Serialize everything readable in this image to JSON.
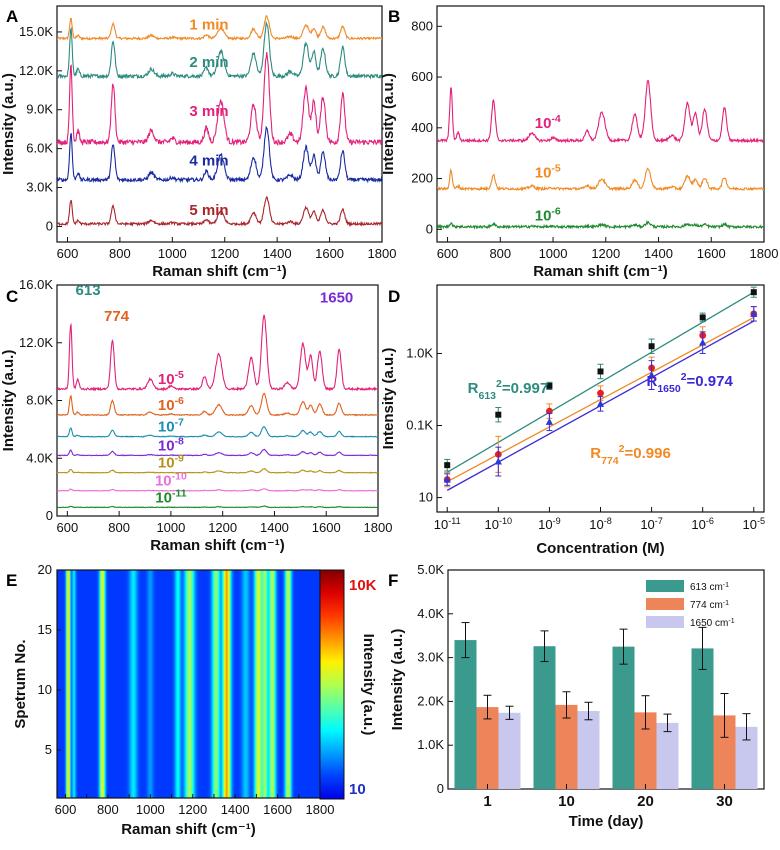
{
  "panels": [
    {
      "id": "A",
      "letter": "A"
    },
    {
      "id": "B",
      "letter": "B"
    },
    {
      "id": "C",
      "letter": "C"
    },
    {
      "id": "D",
      "letter": "D"
    },
    {
      "id": "E",
      "letter": "E"
    },
    {
      "id": "F",
      "letter": "F"
    }
  ],
  "chart_data": [
    {
      "panel": "A",
      "type": "line",
      "xlabel": "Raman shift (cm⁻¹)",
      "ylabel": "Intensity (a.u.)",
      "xlim": [
        560,
        1800
      ],
      "ylim": [
        -1200,
        17000
      ],
      "xticks": [
        600,
        800,
        1000,
        1200,
        1400,
        1600,
        1800
      ],
      "yticks": [
        {
          "v": 0,
          "t": "0"
        },
        {
          "v": 3000,
          "t": "3.0K"
        },
        {
          "v": 6000,
          "t": "6.0K"
        },
        {
          "v": 9000,
          "t": "9.0K"
        },
        {
          "v": 12000,
          "t": "12.0K"
        },
        {
          "v": 15000,
          "t": "15.0K"
        }
      ],
      "series": [
        {
          "name": "1 min",
          "color": "#f08a24",
          "offset": 14500,
          "scale": 0.25
        },
        {
          "name": "2 min",
          "color": "#2e8b80",
          "offset": 11600,
          "scale": 0.6
        },
        {
          "name": "3 min",
          "color": "#e3217a",
          "offset": 6500,
          "scale": 1.0
        },
        {
          "name": "4 min",
          "color": "#1a2aa0",
          "offset": 3600,
          "scale": 0.6
        },
        {
          "name": "5 min",
          "color": "#a8262c",
          "offset": 200,
          "scale": 0.3
        }
      ]
    },
    {
      "panel": "B",
      "type": "line",
      "xlabel": "Raman shift (cm⁻¹)",
      "ylabel": "Intensity (a.u.)",
      "xlim": [
        560,
        1800
      ],
      "ylim": [
        -50,
        880
      ],
      "xticks": [
        600,
        800,
        1000,
        1200,
        1400,
        1600,
        1800
      ],
      "yticks": [
        {
          "v": 0,
          "t": "0"
        },
        {
          "v": 200,
          "t": "200"
        },
        {
          "v": 400,
          "t": "400"
        },
        {
          "v": 600,
          "t": "600"
        },
        {
          "v": 800,
          "t": "800"
        }
      ],
      "series": [
        {
          "name": "10",
          "exp": "-4",
          "color": "#e3217a",
          "offset": 350,
          "scale": 0.035
        },
        {
          "name": "10",
          "exp": "-5",
          "color": "#f08a24",
          "offset": 160,
          "scale": 0.012
        },
        {
          "name": "10",
          "exp": "-6",
          "color": "#1e8a2e",
          "offset": 10,
          "scale": 0.0025
        }
      ]
    },
    {
      "panel": "C",
      "type": "line",
      "xlabel": "Raman shift (cm⁻¹)",
      "ylabel": "Intensity (a.u.)",
      "xlim": [
        560,
        1800
      ],
      "ylim": [
        0,
        16000
      ],
      "xticks": [
        600,
        800,
        1000,
        1200,
        1400,
        1600,
        1800
      ],
      "yticks": [
        {
          "v": 0,
          "t": "0"
        },
        {
          "v": 4000,
          "t": "4.0K"
        },
        {
          "v": 8000,
          "t": "8.0K"
        },
        {
          "v": 12000,
          "t": "12.0K"
        },
        {
          "v": 16000,
          "t": "16.0K"
        }
      ],
      "peak_labels": [
        {
          "text": "613",
          "x": 613,
          "color": "#2e8b80"
        },
        {
          "text": "774",
          "x": 774,
          "color": "#e0621e"
        },
        {
          "text": "1650",
          "x": 1650,
          "color": "#7a2ad6"
        }
      ],
      "series": [
        {
          "name": "10",
          "exp": "-5",
          "color": "#e3217a",
          "offset": 8800,
          "scale": 0.75
        },
        {
          "name": "10",
          "exp": "-6",
          "color": "#e0621e",
          "offset": 7000,
          "scale": 0.22
        },
        {
          "name": "10",
          "exp": "-7",
          "color": "#1a8fb0",
          "offset": 5500,
          "scale": 0.1
        },
        {
          "name": "10",
          "exp": "-8",
          "color": "#7a2ad6",
          "offset": 4200,
          "scale": 0.06
        },
        {
          "name": "10",
          "exp": "-9",
          "color": "#b5931a",
          "offset": 3000,
          "scale": 0.04
        },
        {
          "name": "10",
          "exp": "-10",
          "color": "#ea6fd8",
          "offset": 1750,
          "scale": 0.02
        },
        {
          "name": "10",
          "exp": "-11",
          "color": "#1e8a2e",
          "offset": 600,
          "scale": 0.012
        }
      ]
    },
    {
      "panel": "D",
      "type": "scatter",
      "xlabel": "Concentration (M)",
      "ylabel": "Intensity (a.u.)",
      "xscale": "log",
      "yscale": "log",
      "xlim": [
        -11.2,
        -4.8
      ],
      "ylim": [
        0.8,
        3.95
      ],
      "x": [
        -11,
        -10,
        -9,
        -8,
        -7,
        -6,
        -5
      ],
      "xtick_labels": [
        "10",
        "10",
        "10",
        "10",
        "10",
        "10",
        "10"
      ],
      "xtick_exps": [
        "-11",
        "-10",
        "-9",
        "-8",
        "-7",
        "-6",
        "-5"
      ],
      "yticks": [
        {
          "v": 1,
          "t": "10"
        },
        {
          "v": 2,
          "t": "0.1K"
        },
        {
          "v": 3,
          "t": "1.0K"
        }
      ],
      "series": [
        {
          "name": "R613",
          "label": "R",
          "sub": "613",
          "sup": "2",
          "value": "=0.997",
          "color": "#2e8b80",
          "marker": "square",
          "y": [
            1.45,
            2.15,
            2.55,
            2.75,
            3.1,
            3.5,
            3.85
          ],
          "err": [
            0.08,
            0.1,
            0.05,
            0.1,
            0.1,
            0.06,
            0.07
          ],
          "fit": [
            1.35,
            3.85
          ]
        },
        {
          "name": "R774",
          "label": "R",
          "sub": "774",
          "sup": "2",
          "value": "=0.996",
          "color": "#f08a24",
          "marker": "circle",
          "y": [
            1.25,
            1.6,
            2.2,
            2.45,
            2.8,
            3.25,
            3.55
          ],
          "err": [
            0.1,
            0.25,
            0.1,
            0.1,
            0.15,
            0.12,
            0.1
          ],
          "fit": [
            1.22,
            3.5
          ]
        },
        {
          "name": "R1650",
          "label": "R",
          "sub": "1650",
          "sup": "2",
          "value": "=0.974",
          "color": "#3a2ad6",
          "marker": "triangle",
          "y": [
            1.25,
            1.5,
            2.05,
            2.3,
            2.7,
            3.15,
            3.55
          ],
          "err": [
            0.08,
            0.2,
            0.12,
            0.1,
            0.2,
            0.15,
            0.1
          ],
          "fit": [
            1.1,
            3.45
          ]
        }
      ]
    },
    {
      "panel": "E",
      "type": "heatmap",
      "xlabel": "Raman shift (cm⁻¹)",
      "ylabel": "Spetrum No.",
      "colorbar_label": "Intensity (a.u.)",
      "colorbar_max": "10K",
      "colorbar_min": "10",
      "xlim": [
        560,
        1800
      ],
      "ylim": [
        1,
        20
      ],
      "xticks": [
        600,
        700,
        800,
        900,
        1000,
        1100,
        1200,
        1300,
        1400,
        1500,
        1600,
        1700,
        1800
      ],
      "yticks": [
        5,
        10,
        15,
        20
      ]
    },
    {
      "panel": "F",
      "type": "bar",
      "xlabel": "Time (day)",
      "ylabel": "Intensity (a.u.)",
      "categories": [
        "1",
        "10",
        "20",
        "30"
      ],
      "ylim": [
        0,
        5000
      ],
      "yticks": [
        {
          "v": 0,
          "t": "0"
        },
        {
          "v": 1000,
          "t": "1.0K"
        },
        {
          "v": 2000,
          "t": "2.0K"
        },
        {
          "v": 3000,
          "t": "3.0K"
        },
        {
          "v": 4000,
          "t": "4.0K"
        },
        {
          "v": 5000,
          "t": "5.0K"
        }
      ],
      "series": [
        {
          "name": "613 cm",
          "sup": "-1",
          "color": "#3a9a8e",
          "values": [
            3400,
            3260,
            3250,
            3210
          ],
          "err": [
            400,
            350,
            400,
            480
          ]
        },
        {
          "name": "774 cm",
          "sup": "-1",
          "color": "#ee845a",
          "values": [
            1870,
            1920,
            1750,
            1680
          ],
          "err": [
            270,
            300,
            380,
            500
          ]
        },
        {
          "name": "1650 cm",
          "sup": "-1",
          "color": "#c8c8ee",
          "values": [
            1740,
            1780,
            1510,
            1420
          ],
          "err": [
            150,
            200,
            200,
            300
          ]
        }
      ]
    }
  ]
}
